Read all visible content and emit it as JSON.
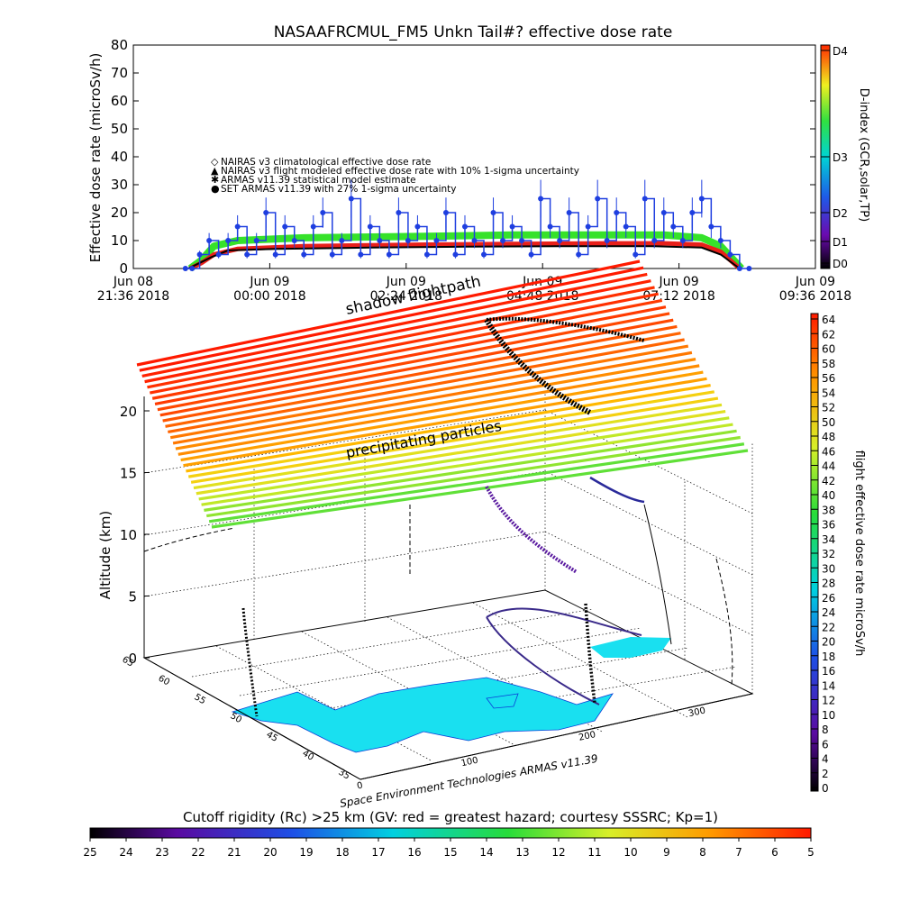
{
  "title": "NASAAFRCMUL_FM5 Unkn Tail#? effective dose rate",
  "colors": {
    "nairas_clim": "#e8201a",
    "nairas_flight": "#000000",
    "armas_model": "#36e22a",
    "set_armas": "#1f3fe0"
  },
  "chart_data": [
    {
      "type": "line",
      "name": "time-series",
      "ylabel": "Effective dose rate (microSv/h)",
      "ylim": [
        0,
        80
      ],
      "yticks": [
        "0",
        "10",
        "20",
        "30",
        "40",
        "50",
        "60",
        "70",
        "80"
      ],
      "xticks": [
        {
          "t": 0,
          "l1": "Jun 08",
          "l2": "21:36 2018"
        },
        {
          "t": 144,
          "l1": "Jun 09",
          "l2": "00:00 2018"
        },
        {
          "t": 288,
          "l1": "Jun 09",
          "l2": "02:24 2018"
        },
        {
          "t": 432,
          "l1": "Jun 09",
          "l2": "04:48 2018"
        },
        {
          "t": 576,
          "l1": "Jun 09",
          "l2": "07:12 2018"
        },
        {
          "t": 720,
          "l1": "Jun 09",
          "l2": "09:36 2018"
        }
      ],
      "xrange_min": [
        0,
        720
      ],
      "legend": [
        "NAIRAS v3 climatological effective dose rate",
        "NAIRAS v3 flight modeled effective dose rate with 10% 1-sigma uncertainty",
        "ARMAS v11.39 statistical model estimate",
        "SET ARMAS v11.39 with 27% 1-sigma uncertainty"
      ],
      "series": [
        {
          "name": "NAIRAS v3 climatological effective dose rate",
          "color": "#e8201a",
          "x": [
            60,
            72,
            85,
            110,
            180,
            300,
            400,
            500,
            560,
            600,
            620,
            640
          ],
          "y": [
            0,
            2,
            5,
            7,
            8,
            8.5,
            8.8,
            9,
            9,
            8.5,
            6,
            0
          ]
        },
        {
          "name": "NAIRAS v3 flight modeled effective dose rate with 10% 1-sigma uncertainty",
          "color": "#000000",
          "x": [
            58,
            70,
            82,
            100,
            150,
            250,
            350,
            450,
            550,
            600,
            620,
            640
          ],
          "y": [
            0,
            2,
            4,
            6.5,
            7,
            7.5,
            7.8,
            8,
            8,
            7.5,
            5,
            0
          ]
        },
        {
          "name": "ARMAS v11.39 statistical model estimate",
          "color": "#36e22a",
          "x": [
            60,
            72,
            85,
            110,
            180,
            300,
            400,
            500,
            560,
            600,
            620,
            642
          ],
          "y": [
            0,
            3,
            8,
            10,
            11,
            11.5,
            12,
            12,
            12,
            11,
            8,
            0
          ]
        },
        {
          "name": "SET ARMAS v11.39 with 27% 1-sigma uncertainty",
          "color": "#1f3fe0",
          "x": [
            55,
            62,
            70,
            80,
            90,
            100,
            110,
            120,
            130,
            140,
            150,
            160,
            170,
            180,
            190,
            200,
            210,
            220,
            230,
            240,
            250,
            260,
            270,
            280,
            290,
            300,
            310,
            320,
            330,
            340,
            350,
            360,
            370,
            380,
            390,
            400,
            410,
            420,
            430,
            440,
            450,
            460,
            470,
            480,
            490,
            500,
            510,
            520,
            530,
            540,
            550,
            560,
            570,
            580,
            590,
            600,
            610,
            620,
            630,
            640,
            650
          ],
          "y": [
            0,
            0,
            5,
            10,
            5,
            10,
            15,
            5,
            10,
            20,
            5,
            15,
            10,
            5,
            15,
            20,
            5,
            10,
            25,
            5,
            15,
            10,
            5,
            20,
            10,
            15,
            5,
            10,
            20,
            5,
            15,
            10,
            5,
            20,
            10,
            15,
            10,
            5,
            25,
            15,
            10,
            20,
            5,
            15,
            25,
            10,
            20,
            15,
            5,
            25,
            10,
            20,
            15,
            10,
            20,
            25,
            15,
            10,
            5,
            0,
            0
          ],
          "uncertainty_pct": 27
        },
        {
          "name": "D-index",
          "color": "#ff2a00"
        }
      ],
      "right_axis": {
        "label": "D-index (GCR,solar,TP)",
        "ticks": [
          "D0",
          "D1",
          "D2",
          "D3",
          "D4"
        ]
      }
    },
    {
      "type": "scatter",
      "name": "3d-flight-view",
      "zlabel": "Altitude (km)",
      "zticks": [
        "0",
        "5",
        "10",
        "15",
        "20"
      ],
      "lat_ticks": [
        "35",
        "40",
        "45",
        "50",
        "55",
        "60",
        "65"
      ],
      "lon_ticks": [
        "0",
        "100",
        "200",
        "300"
      ],
      "annotations": [
        "shadow flightpath",
        "precipitating particles"
      ],
      "colorbar": {
        "label": "flight effective dose rate microSv/h",
        "ticks": [
          "0",
          "2",
          "4",
          "6",
          "8",
          "10",
          "12",
          "14",
          "16",
          "18",
          "20",
          "22",
          "24",
          "26",
          "28",
          "30",
          "32",
          "34",
          "36",
          "38",
          "40",
          "42",
          "44",
          "46",
          "48",
          "50",
          "52",
          "54",
          "56",
          "58",
          "60",
          "62",
          "64"
        ]
      },
      "credit": "Space Environment Technologies ARMAS v11.39"
    },
    {
      "type": "heatmap",
      "name": "cutoff-rigidity-colorbar",
      "title": "Cutoff rigidity (Rc) >25 km (GV: red = greatest hazard; courtesy SSSRC; Kp=1)",
      "ticks": [
        "25",
        "24",
        "23",
        "22",
        "21",
        "20",
        "19",
        "18",
        "17",
        "16",
        "15",
        "14",
        "13",
        "12",
        "11",
        "10",
        "9",
        "8",
        "7",
        "6",
        "5"
      ]
    }
  ]
}
